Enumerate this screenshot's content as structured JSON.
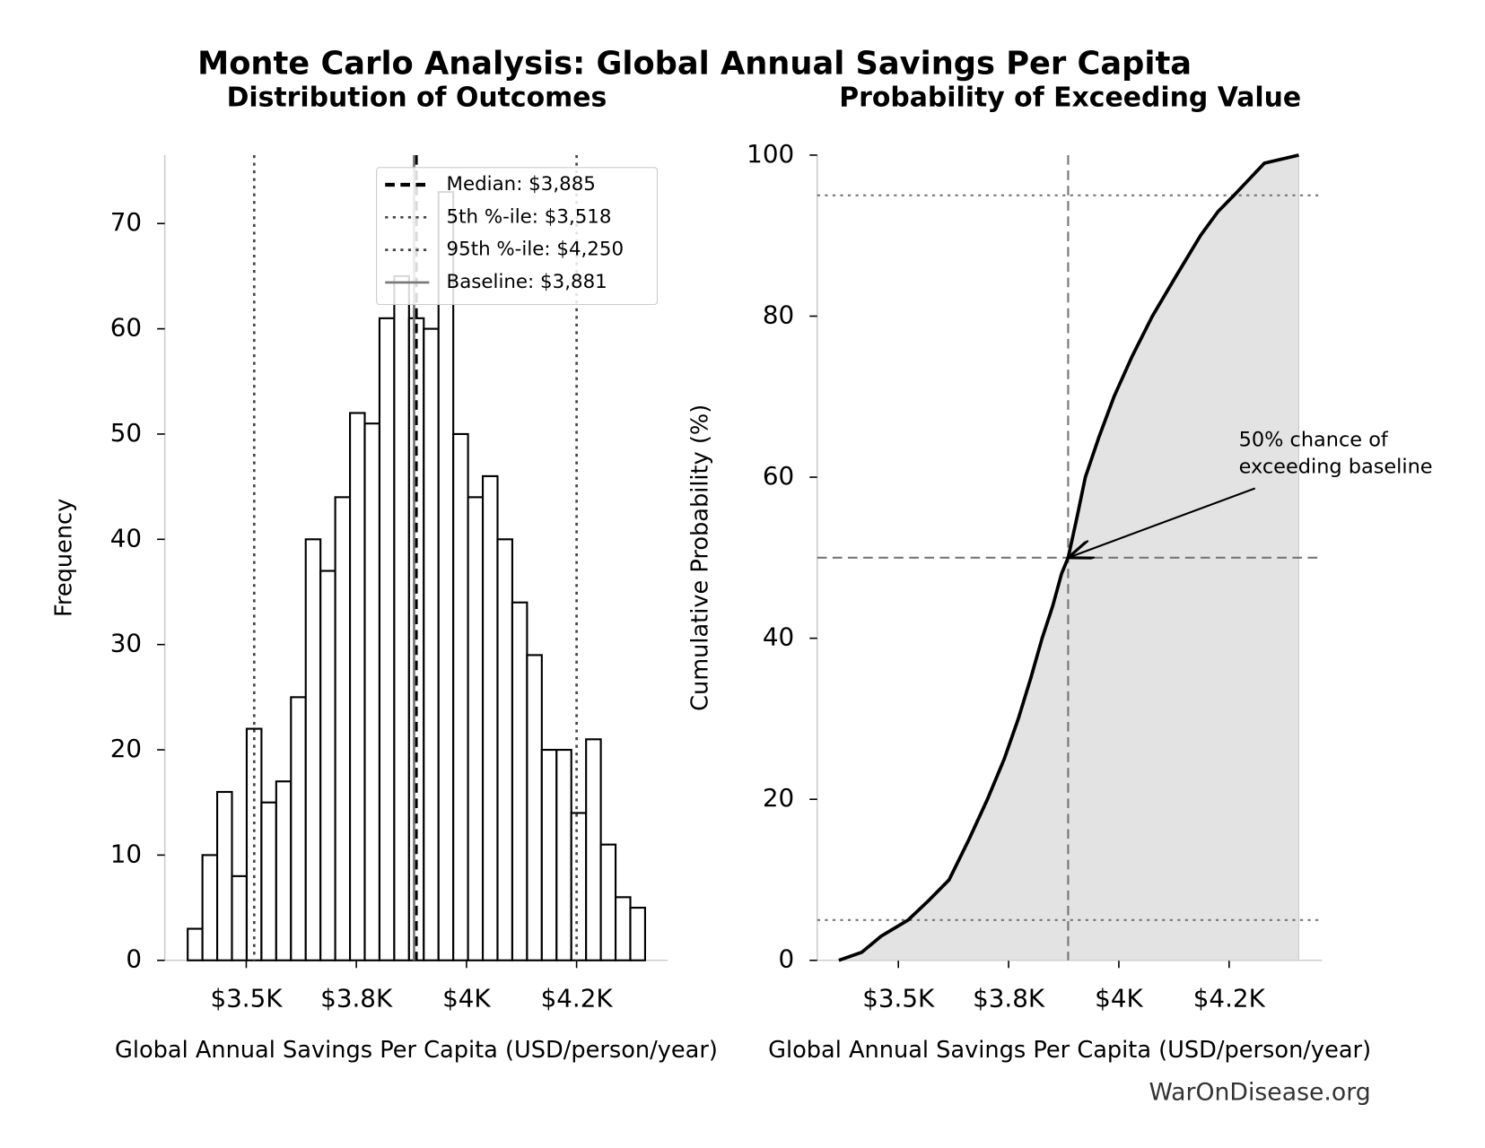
{
  "title": "Monte Carlo Analysis: Global Annual Savings Per Capita",
  "watermark": "WarOnDisease.org",
  "chart_data": [
    {
      "type": "histogram",
      "title": "Distribution of Outcomes",
      "x_label": "Global Annual Savings Per Capita (USD/person/year)",
      "y_label": "Frequency",
      "bins": [
        3367,
        3400.5,
        3434,
        3467.5,
        3501,
        3534.5,
        3568,
        3601.5,
        3635,
        3668.5,
        3702,
        3735.5,
        3769,
        3802.5,
        3836,
        3869.5,
        3903,
        3936.5,
        3970,
        4003.5,
        4037,
        4070.5,
        4104,
        4137.5,
        4171,
        4204.5,
        4238,
        4271.5,
        4305,
        4338.5,
        4372,
        4405.5
      ],
      "values": [
        3,
        10,
        16,
        8,
        22,
        15,
        17,
        25,
        40,
        37,
        44,
        52,
        51,
        61,
        65,
        61,
        60,
        73,
        50,
        44,
        46,
        40,
        34,
        29,
        20,
        20,
        14,
        21,
        11,
        6,
        5
      ],
      "color": "#ffffff",
      "edge_color": "#000000",
      "xlim": [
        3315,
        4457
      ],
      "ylim": [
        0,
        76.5
      ],
      "xticks": [
        {
          "value": 3500,
          "label": "$3.5K"
        },
        {
          "value": 3750,
          "label": "$3.8K"
        },
        {
          "value": 4000,
          "label": "$4K"
        },
        {
          "value": 4250,
          "label": "$4.2K"
        }
      ],
      "yticks": [
        0,
        10,
        20,
        30,
        40,
        50,
        60,
        70
      ],
      "reference_lines": [
        {
          "name": "Median: $3,885",
          "value": 3885,
          "style": "dashed",
          "color": "#000000"
        },
        {
          "name": "5th %-ile: $3,518",
          "value": 3518,
          "style": "dotted",
          "color": "#444444"
        },
        {
          "name": "95th %-ile: $4,250",
          "value": 4250,
          "style": "dotted",
          "color": "#444444"
        },
        {
          "name": "Baseline: $3,881",
          "value": 3881,
          "style": "solid",
          "color": "#777777"
        }
      ],
      "legend": "upper right"
    },
    {
      "type": "line",
      "title": "Probability of Exceeding Value",
      "x_label": "Global Annual Savings Per Capita (USD/person/year)",
      "y_label": "Cumulative Probability (%)",
      "x": [
        3365,
        3417,
        3461,
        3522,
        3570,
        3615,
        3660,
        3702,
        3740,
        3772,
        3800,
        3826,
        3850,
        3870,
        3885,
        3905,
        3924,
        3955,
        3989,
        4030,
        4076,
        4130,
        4185,
        4225,
        4261,
        4330,
        4408
      ],
      "values": [
        0,
        1,
        3,
        5,
        7.5,
        10,
        15,
        20,
        25,
        30,
        35,
        40,
        44,
        48,
        50,
        55,
        60,
        65,
        70,
        75,
        80,
        85,
        90,
        93,
        95,
        99,
        100
      ],
      "color": "#000000",
      "fill_color": "#e3e3e3",
      "xlim": [
        3316,
        4461
      ],
      "ylim": [
        0,
        100
      ],
      "xticks": [
        {
          "value": 3500,
          "label": "$3.5K"
        },
        {
          "value": 3750,
          "label": "$3.8K"
        },
        {
          "value": 4000,
          "label": "$4K"
        },
        {
          "value": 4250,
          "label": "$4.2K"
        }
      ],
      "yticks": [
        0,
        20,
        40,
        60,
        80,
        100
      ],
      "hlines": [
        {
          "value": 95,
          "style": "dotted"
        },
        {
          "value": 5,
          "style": "dotted"
        },
        {
          "value": 50,
          "style": "dashed"
        }
      ],
      "vlines": [
        {
          "value": 3885,
          "style": "dashed"
        }
      ],
      "annotation": {
        "text": [
          "50% chance of",
          "exceeding baseline"
        ],
        "xy": [
          3885,
          50
        ]
      }
    }
  ]
}
